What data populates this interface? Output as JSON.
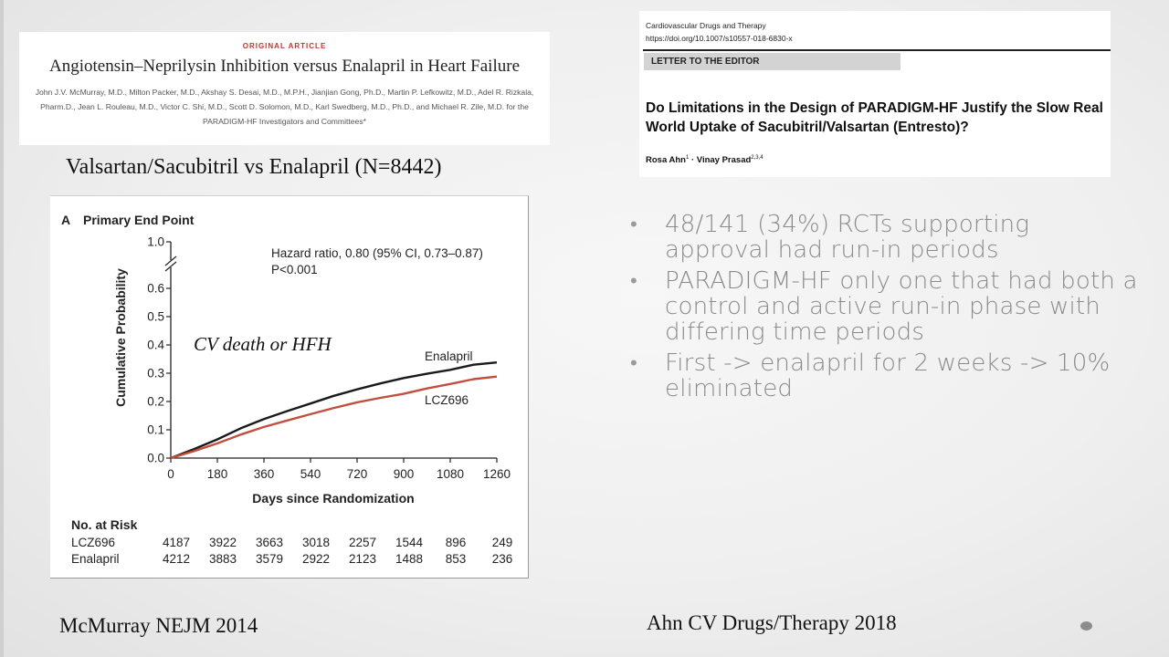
{
  "nejm": {
    "tag": "ORIGINAL ARTICLE",
    "title": "Angiotensin–Neprilysin Inhibition versus Enalapril in Heart Failure",
    "authors": "John J.V. McMurray, M.D., Milton Packer, M.D., Akshay S. Desai, M.D., M.P.H., Jianjian Gong, Ph.D., Martin P. Lefkowitz, M.D., Adel R. Rizkala, Pharm.D., Jean L. Rouleau, M.D., Victor C. Shi, M.D., Scott D. Solomon, M.D., Karl Swedberg, M.D., Ph.D., and Michael R. Zile, M.D. for the PARADIGM-HF Investigators and Committees*"
  },
  "study_heading": "Valsartan/Sacubitril vs Enalapril (N=8442)",
  "figure": {
    "panel_label": "A",
    "panel_title": "Primary End Point",
    "annotation_hr": "Hazard ratio, 0.80 (95% CI, 0.73–0.87)",
    "annotation_p": "P<0.001",
    "endpoint_label": "CV death or HFH",
    "risk_table": {
      "title": "No. at Risk",
      "rows": [
        {
          "label": "LCZ696",
          "values": [
            "4187",
            "3922",
            "3663",
            "3018",
            "2257",
            "1544",
            "896",
            "249"
          ]
        },
        {
          "label": "Enalapril",
          "values": [
            "4212",
            "3883",
            "3579",
            "2922",
            "2123",
            "1488",
            "853",
            "236"
          ]
        }
      ]
    }
  },
  "chart_data": {
    "type": "line",
    "title": "Primary End Point",
    "xlabel": "Days since Randomization",
    "ylabel": "Cumulative Probability",
    "xlim": [
      0,
      1260
    ],
    "ylim": [
      0,
      0.6
    ],
    "y_axis_break_top": 1.0,
    "x_ticks": [
      0,
      180,
      360,
      540,
      720,
      900,
      1080,
      1260
    ],
    "x_tick_labels": [
      "0",
      "180",
      "360",
      "540",
      "720",
      "900",
      "1080",
      "1260"
    ],
    "y_ticks": [
      0.0,
      0.1,
      0.2,
      0.3,
      0.4,
      0.5,
      0.6,
      1.0
    ],
    "y_tick_labels": [
      "0.0",
      "0.1",
      "0.2",
      "0.3",
      "0.4",
      "0.5",
      "0.6",
      "1.0"
    ],
    "grid": false,
    "series": [
      {
        "name": "Enalapril",
        "color": "#1a1a1a",
        "x": [
          0,
          90,
          180,
          270,
          360,
          450,
          540,
          630,
          720,
          810,
          900,
          990,
          1080,
          1170,
          1260
        ],
        "y": [
          0,
          0.032,
          0.066,
          0.105,
          0.138,
          0.166,
          0.193,
          0.22,
          0.243,
          0.264,
          0.283,
          0.298,
          0.312,
          0.33,
          0.338
        ]
      },
      {
        "name": "LCZ696",
        "color": "#c0503e",
        "x": [
          0,
          90,
          180,
          270,
          360,
          450,
          540,
          630,
          720,
          810,
          900,
          990,
          1080,
          1170,
          1260
        ],
        "y": [
          0,
          0.025,
          0.052,
          0.083,
          0.11,
          0.133,
          0.155,
          0.177,
          0.197,
          0.213,
          0.227,
          0.246,
          0.262,
          0.279,
          0.288
        ]
      }
    ]
  },
  "letter": {
    "journal": "Cardiovascular Drugs and Therapy",
    "doi": "https://doi.org/10.1007/s10557-018-6830-x",
    "section": "LETTER TO THE EDITOR",
    "title": "Do Limitations in the Design of PARADIGM-HF Justify the Slow Real World Uptake of Sacubitril/Valsartan (Entresto)?",
    "author1": "Rosa Ahn",
    "author1_sup": "1",
    "separator": "·",
    "author2": "Vinay Prasad",
    "author2_sup": "2,3,4"
  },
  "bullets": [
    "48/141 (34%) RCTs supporting approval had run-in periods",
    "PARADIGM-HF only one that had both a control and active run-in phase with differing time periods",
    "First -> enalapril for 2 weeks -> 10% eliminated"
  ],
  "citations": {
    "left": "McMurray NEJM 2014",
    "right": "Ahn CV Drugs/Therapy 2018"
  }
}
